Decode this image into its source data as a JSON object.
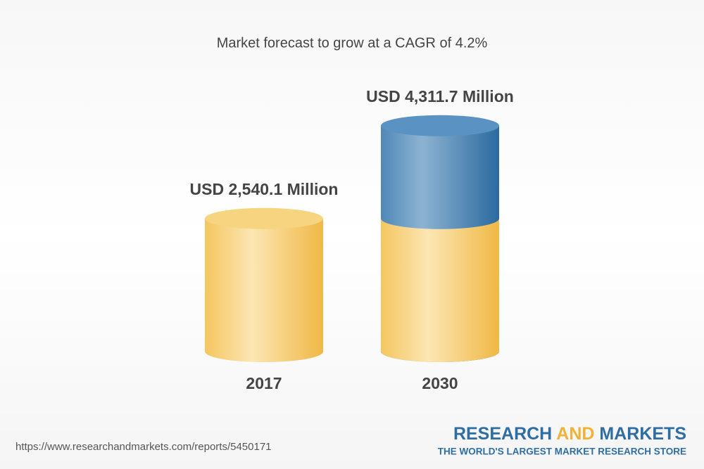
{
  "chart_data": {
    "type": "cylinder",
    "title": "Market forecast to grow at a CAGR of 4.2%",
    "categories": [
      "2017",
      "2030"
    ],
    "values": [
      2540.1,
      4311.7
    ],
    "value_labels": [
      "USD 2,540.1 Million",
      "USD 4,311.7 Million"
    ],
    "color": "#f3c55f",
    "growth_color": "#4f88b8"
  },
  "footer": {
    "url": "https://www.researchandmarkets.com/reports/5450171",
    "logo": [
      "RESEARCH",
      "AND",
      "MARKETS"
    ],
    "tagline": "THE WORLD'S LARGEST MARKET RESEARCH STORE"
  }
}
